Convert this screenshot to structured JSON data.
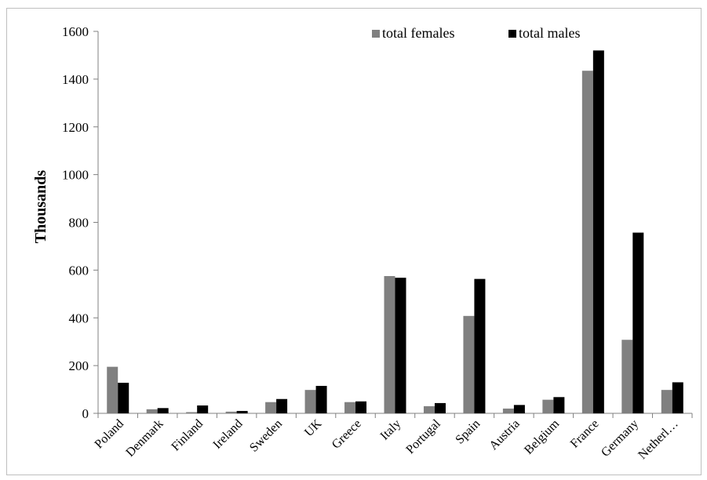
{
  "chart_data": {
    "type": "bar",
    "title": "",
    "xlabel": "",
    "ylabel": "Thousands",
    "ylim": [
      0,
      1600
    ],
    "yticks": [
      0,
      200,
      400,
      600,
      800,
      1000,
      1200,
      1400,
      1600
    ],
    "grid": false,
    "legend_position": "top-right",
    "categories": [
      "Poland",
      "Denmark",
      "Finland",
      "Ireland",
      "Sweden",
      "UK",
      "Greece",
      "Italy",
      "Portugal",
      "Spain",
      "Austria",
      "Belgium",
      "France",
      "Germany",
      "Netherl…"
    ],
    "series": [
      {
        "name": "total females",
        "color": "#808080",
        "values": [
          195,
          17,
          5,
          7,
          47,
          98,
          47,
          575,
          30,
          408,
          20,
          57,
          1435,
          308,
          98
        ]
      },
      {
        "name": "total males",
        "color": "#000000",
        "values": [
          128,
          22,
          33,
          10,
          60,
          115,
          50,
          568,
          43,
          563,
          35,
          68,
          1520,
          757,
          130
        ]
      }
    ]
  }
}
